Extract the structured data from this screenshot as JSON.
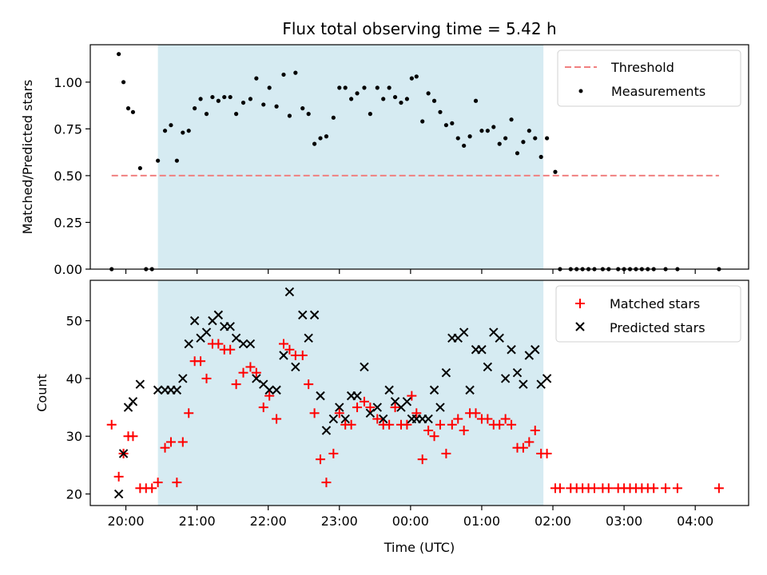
{
  "chart_data": [
    {
      "type": "scatter",
      "title": "Flux total observing time = 5.42 h",
      "xlabel": "",
      "ylabel": "Matched/Predicted stars",
      "ylim": [
        0,
        1.2
      ],
      "yticks": [
        0.0,
        0.25,
        0.5,
        0.75,
        1.0
      ],
      "ytick_labels": [
        "0.00",
        "0.25",
        "0.50",
        "0.75",
        "1.00"
      ],
      "xlim": [
        19.5,
        4.75
      ],
      "shaded_span": [
        "20:27",
        "01:52"
      ],
      "legend": {
        "position": "top-right",
        "entries": [
          "Threshold",
          "Measurements"
        ]
      },
      "threshold": {
        "name": "Threshold",
        "value": 0.5,
        "x_start": "19:48",
        "x_end": "04:20",
        "color": "#f08080"
      },
      "series": [
        {
          "name": "Measurements",
          "color": "#000000",
          "x": [
            "19:48",
            "19:54",
            "19:58",
            "20:02",
            "20:06",
            "20:12",
            "20:17",
            "20:22",
            "20:27",
            "20:33",
            "20:38",
            "20:43",
            "20:48",
            "20:53",
            "20:58",
            "21:03",
            "21:08",
            "21:13",
            "21:18",
            "21:23",
            "21:28",
            "21:33",
            "21:39",
            "21:45",
            "21:50",
            "21:56",
            "22:01",
            "22:07",
            "22:13",
            "22:18",
            "22:23",
            "22:29",
            "22:34",
            "22:39",
            "22:44",
            "22:49",
            "22:55",
            "23:00",
            "23:05",
            "23:10",
            "23:15",
            "23:21",
            "23:26",
            "23:32",
            "23:37",
            "23:42",
            "23:47",
            "23:52",
            "23:57",
            "00:01",
            "00:05",
            "00:10",
            "00:15",
            "00:20",
            "00:25",
            "00:30",
            "00:35",
            "00:40",
            "00:45",
            "00:50",
            "00:55",
            "01:00",
            "01:05",
            "01:10",
            "01:15",
            "01:20",
            "01:25",
            "01:30",
            "01:35",
            "01:40",
            "01:45",
            "01:50",
            "01:55",
            "02:02",
            "02:06",
            "02:15",
            "02:20",
            "02:25",
            "02:30",
            "02:35",
            "02:42",
            "02:47",
            "02:55",
            "03:00",
            "03:05",
            "03:10",
            "03:15",
            "03:20",
            "03:25",
            "03:35",
            "03:45",
            "04:20"
          ],
          "y": [
            0.0,
            1.15,
            1.0,
            0.86,
            0.84,
            0.54,
            0.0,
            0.0,
            0.58,
            0.74,
            0.77,
            0.58,
            0.73,
            0.74,
            0.86,
            0.91,
            0.83,
            0.92,
            0.9,
            0.92,
            0.92,
            0.83,
            0.89,
            0.91,
            1.02,
            0.88,
            0.97,
            0.87,
            1.04,
            0.82,
            1.05,
            0.86,
            0.83,
            0.67,
            0.7,
            0.71,
            0.81,
            0.97,
            0.97,
            0.91,
            0.94,
            0.97,
            0.83,
            0.97,
            0.91,
            0.97,
            0.92,
            0.89,
            0.91,
            1.02,
            1.03,
            0.79,
            0.94,
            0.9,
            0.84,
            0.77,
            0.78,
            0.7,
            0.66,
            0.71,
            0.9,
            0.74,
            0.74,
            0.76,
            0.67,
            0.7,
            0.8,
            0.62,
            0.68,
            0.74,
            0.7,
            0.6,
            0.7,
            0.52,
            0.0,
            0.0,
            0.0,
            0.0,
            0.0,
            0.0,
            0.0,
            0.0,
            0.0,
            0.0,
            0.0,
            0.0,
            0.0,
            0.0,
            0.0,
            0.0,
            0.0,
            0.0
          ]
        }
      ]
    },
    {
      "type": "scatter",
      "title": "",
      "xlabel": "Time (UTC)",
      "ylabel": "Count",
      "ylim": [
        18,
        57
      ],
      "yticks": [
        20,
        30,
        40,
        50
      ],
      "ytick_labels": [
        "20",
        "30",
        "40",
        "50"
      ],
      "xlim": [
        19.5,
        4.75
      ],
      "xticks": [
        "20:00",
        "21:00",
        "22:00",
        "23:00",
        "00:00",
        "01:00",
        "02:00",
        "03:00",
        "04:00"
      ],
      "shaded_span": [
        "20:27",
        "01:52"
      ],
      "legend": {
        "position": "top-right",
        "entries": [
          "Matched stars",
          "Predicted stars"
        ]
      },
      "series": [
        {
          "name": "Matched stars",
          "marker": "+",
          "color": "#ff0000",
          "x": [
            "19:48",
            "19:54",
            "19:58",
            "20:02",
            "20:06",
            "20:12",
            "20:17",
            "20:22",
            "20:27",
            "20:33",
            "20:38",
            "20:43",
            "20:48",
            "20:53",
            "20:58",
            "21:03",
            "21:08",
            "21:13",
            "21:18",
            "21:23",
            "21:28",
            "21:33",
            "21:39",
            "21:45",
            "21:50",
            "21:56",
            "22:01",
            "22:07",
            "22:13",
            "22:18",
            "22:23",
            "22:29",
            "22:34",
            "22:39",
            "22:44",
            "22:49",
            "22:55",
            "23:00",
            "23:05",
            "23:10",
            "23:15",
            "23:21",
            "23:26",
            "23:32",
            "23:37",
            "23:42",
            "23:47",
            "23:52",
            "23:57",
            "00:01",
            "00:05",
            "00:10",
            "00:15",
            "00:20",
            "00:25",
            "00:30",
            "00:35",
            "00:40",
            "00:45",
            "00:50",
            "00:55",
            "01:00",
            "01:05",
            "01:10",
            "01:15",
            "01:20",
            "01:25",
            "01:30",
            "01:35",
            "01:40",
            "01:45",
            "01:50",
            "01:55",
            "02:02",
            "02:06",
            "02:15",
            "02:20",
            "02:25",
            "02:30",
            "02:35",
            "02:42",
            "02:47",
            "02:55",
            "03:00",
            "03:05",
            "03:10",
            "03:15",
            "03:20",
            "03:25",
            "03:35",
            "03:45",
            "04:20"
          ],
          "y": [
            32,
            23,
            27,
            30,
            30,
            21,
            21,
            21,
            22,
            28,
            29,
            22,
            29,
            34,
            43,
            43,
            40,
            46,
            46,
            45,
            45,
            39,
            41,
            42,
            41,
            35,
            37,
            33,
            46,
            45,
            44,
            44,
            39,
            34,
            26,
            22,
            27,
            34,
            32,
            32,
            35,
            36,
            35,
            33,
            32,
            32,
            35,
            32,
            32,
            37,
            34,
            26,
            31,
            30,
            32,
            27,
            32,
            33,
            31,
            34,
            34,
            33,
            33,
            32,
            32,
            33,
            32,
            28,
            28,
            29,
            31,
            27,
            27,
            21,
            21,
            21,
            21,
            21,
            21,
            21,
            21,
            21,
            21,
            21,
            21,
            21,
            21,
            21,
            21,
            21,
            21,
            21
          ]
        },
        {
          "name": "Predicted stars",
          "marker": "x",
          "color": "#000000",
          "x": [
            "19:54",
            "19:58",
            "20:02",
            "20:06",
            "20:12",
            "20:27",
            "20:33",
            "20:38",
            "20:43",
            "20:48",
            "20:53",
            "20:58",
            "21:03",
            "21:08",
            "21:13",
            "21:18",
            "21:23",
            "21:28",
            "21:33",
            "21:39",
            "21:45",
            "21:50",
            "21:56",
            "22:01",
            "22:07",
            "22:13",
            "22:18",
            "22:23",
            "22:29",
            "22:34",
            "22:39",
            "22:44",
            "22:49",
            "22:55",
            "23:00",
            "23:05",
            "23:10",
            "23:15",
            "23:21",
            "23:26",
            "23:32",
            "23:37",
            "23:42",
            "23:47",
            "23:52",
            "23:57",
            "00:01",
            "00:05",
            "00:10",
            "00:15",
            "00:20",
            "00:25",
            "00:30",
            "00:35",
            "00:40",
            "00:45",
            "00:50",
            "00:55",
            "01:00",
            "01:05",
            "01:10",
            "01:15",
            "01:20",
            "01:25",
            "01:30",
            "01:35",
            "01:40",
            "01:45",
            "01:50",
            "01:55"
          ],
          "y": [
            20,
            27,
            35,
            36,
            39,
            38,
            38,
            38,
            38,
            40,
            46,
            50,
            47,
            48,
            50,
            51,
            49,
            49,
            47,
            46,
            46,
            40,
            39,
            38,
            38,
            44,
            55,
            42,
            51,
            47,
            51,
            37,
            31,
            33,
            35,
            33,
            37,
            37,
            42,
            34,
            35,
            33,
            38,
            36,
            35,
            36,
            33,
            33,
            33,
            33,
            38,
            35,
            41,
            47,
            47,
            48,
            38,
            45,
            45,
            42,
            48,
            47,
            40,
            45,
            41,
            39,
            44,
            45,
            39,
            40
          ]
        }
      ]
    }
  ]
}
